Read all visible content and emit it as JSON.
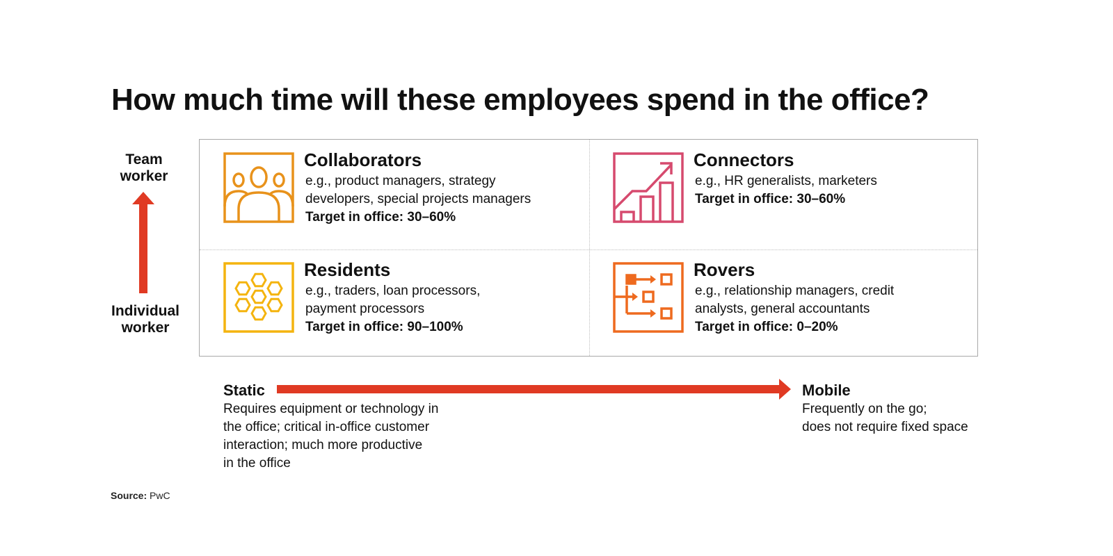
{
  "title": "How much time will these employees spend in the office?",
  "vertical_axis": {
    "top_label": "Team\nworker",
    "bottom_label": "Individual\nworker",
    "arrow_color": "#e03a23"
  },
  "horizontal_axis": {
    "arrow_color": "#e03a23",
    "left": {
      "title": "Static",
      "description": "Requires equipment or technology in\nthe office; critical in-office customer\ninteraction; much more productive\nin the office"
    },
    "right": {
      "title": "Mobile",
      "description": "Frequently on the go;\ndoes not require fixed space"
    }
  },
  "quadrants": [
    {
      "name": "Collaborators",
      "examples": "e.g., product managers, strategy developers, special projects managers",
      "target": "Target in office: 30–60%",
      "icon": "people-group-icon",
      "color": "#e8921b"
    },
    {
      "name": "Connectors",
      "examples": "e.g., HR generalists, marketers",
      "target": "Target in office: 30–60%",
      "icon": "growth-chart-icon",
      "color": "#d64a6e"
    },
    {
      "name": "Residents",
      "examples": "e.g., traders, loan processors, payment processors",
      "target": "Target in office: 90–100%",
      "icon": "hexagon-network-icon",
      "color": "#f4b40f"
    },
    {
      "name": "Rovers",
      "examples": "e.g., relationship managers, credit analysts, general accountants",
      "target": "Target in office: 0–20%",
      "icon": "flow-boxes-icon",
      "color": "#ee6a1f"
    }
  ],
  "source": {
    "label": "Source:",
    "value": "PwC"
  }
}
